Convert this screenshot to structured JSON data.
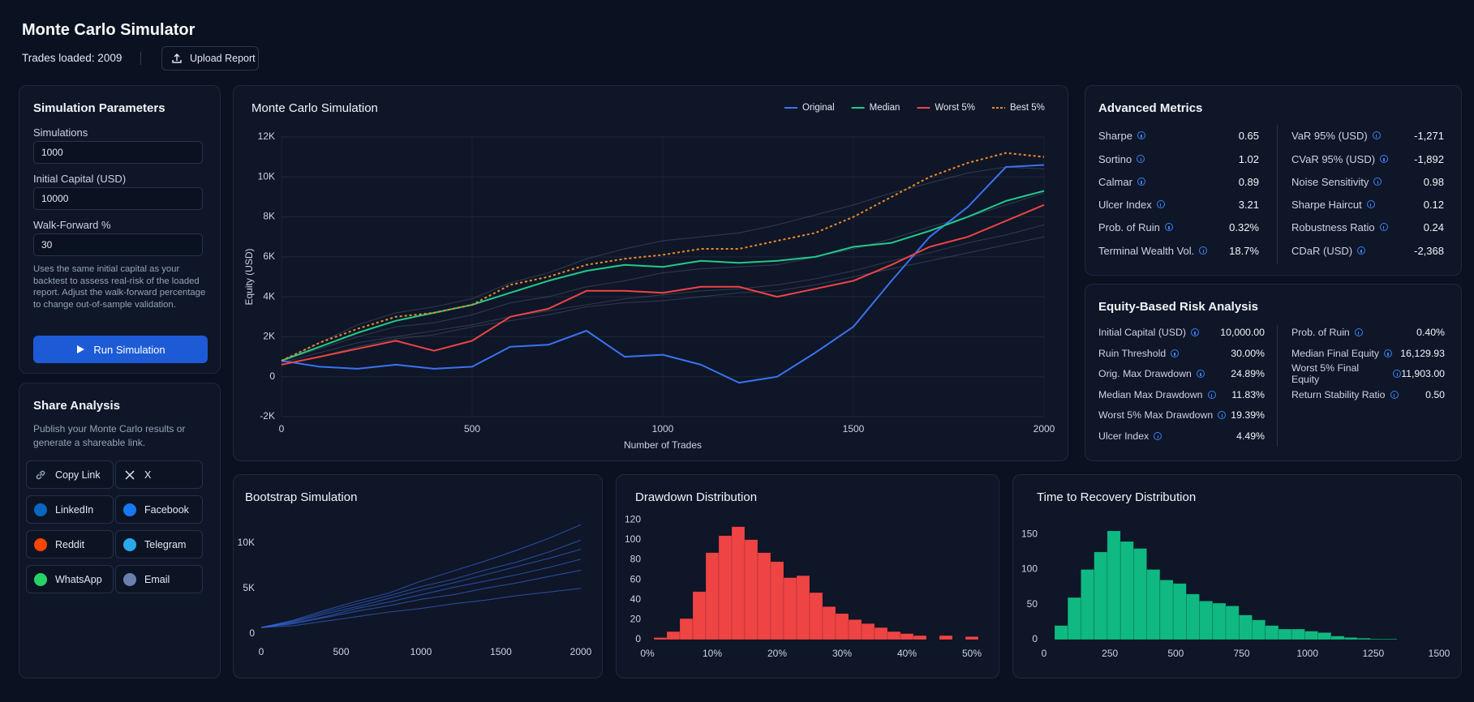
{
  "header": {
    "title": "Monte Carlo Simulator",
    "trades_loaded": "Trades loaded: 2009",
    "upload_button": "Upload Report"
  },
  "parameters": {
    "title": "Simulation Parameters",
    "fields": [
      {
        "label": "Simulations",
        "value": "1000"
      },
      {
        "label": "Initial Capital (USD)",
        "value": "10000"
      },
      {
        "label": "Walk-Forward %",
        "value": "30"
      }
    ],
    "description": "Uses the same initial capital as your backtest to assess real-risk of the loaded report. Adjust the walk-forward percentage to change out-of-sample validation.",
    "run_button": "Run Simulation"
  },
  "share": {
    "title": "Share Analysis",
    "description": "Publish your Monte Carlo results or generate a shareable link.",
    "buttons": [
      "Copy Link",
      "X",
      "LinkedIn",
      "Facebook",
      "Reddit",
      "Telegram",
      "WhatsApp",
      "Email"
    ]
  },
  "advanced_metrics": {
    "title": "Advanced Metrics",
    "left": [
      {
        "label": "Sharpe",
        "value": "0.65"
      },
      {
        "label": "Sortino",
        "value": "1.02"
      },
      {
        "label": "Calmar",
        "value": "0.89"
      },
      {
        "label": "Ulcer Index",
        "value": "3.21"
      },
      {
        "label": "Prob. of Ruin",
        "value": "0.32%"
      },
      {
        "label": "Terminal Wealth Vol.",
        "value": "18.7%"
      }
    ],
    "right": [
      {
        "label": "VaR 95% (USD)",
        "value": "-1,271"
      },
      {
        "label": "CVaR 95% (USD)",
        "value": "-1,892"
      },
      {
        "label": "Noise Sensitivity",
        "value": "0.98"
      },
      {
        "label": "Sharpe Haircut",
        "value": "0.12"
      },
      {
        "label": "Robustness Ratio",
        "value": "0.24"
      },
      {
        "label": "CDaR (USD)",
        "value": "-2,368"
      }
    ]
  },
  "risk_analysis": {
    "title": "Equity-Based Risk Analysis",
    "left": [
      {
        "label": "Initial Capital (USD)",
        "value": "10,000.00"
      },
      {
        "label": "Ruin Threshold",
        "value": "30.00%"
      },
      {
        "label": "Orig. Max Drawdown",
        "value": "24.89%"
      },
      {
        "label": "Median Max Drawdown",
        "value": "11.83%"
      },
      {
        "label": "Worst 5% Max Drawdown",
        "value": "19.39%"
      },
      {
        "label": "Ulcer Index",
        "value": "4.49%"
      }
    ],
    "right": [
      {
        "label": "Prob. of Ruin",
        "value": "0.40%"
      },
      {
        "label": "Median Final Equity",
        "value": "16,129.93"
      },
      {
        "label": "Worst 5% Final Equity",
        "value": "11,903.00"
      },
      {
        "label": "Return Stability Ratio",
        "value": "0.50"
      }
    ]
  },
  "chart_data": [
    {
      "type": "line",
      "title": "Monte Carlo Simulation",
      "x_label": "Number of Trades",
      "y_label": "Equity (USD)",
      "x": [
        0,
        100,
        200,
        300,
        400,
        500,
        600,
        700,
        800,
        900,
        1000,
        1100,
        1200,
        1300,
        1400,
        1500,
        1600,
        1700,
        1800,
        1900,
        2000
      ],
      "xlim": [
        0,
        2000
      ],
      "xticks": [
        0,
        500,
        1000,
        1500,
        2000
      ],
      "ylim": [
        -2000,
        12000
      ],
      "yticks": [
        {
          "value": -2000,
          "label": "-2K"
        },
        0,
        {
          "value": 2000,
          "label": "2K"
        },
        {
          "value": 4000,
          "label": "4K"
        },
        {
          "value": 6000,
          "label": "6K"
        },
        {
          "value": 8000,
          "label": "8K"
        },
        {
          "value": 10000,
          "label": "10K"
        },
        {
          "value": 12000,
          "label": "12K"
        }
      ],
      "grid": true,
      "legend": "top-right",
      "series": [
        {
          "color": "rgba(148,163,184,0.25)",
          "values": [
            800,
            1400,
            2000,
            2500,
            2700,
            3100,
            3700,
            4000,
            4500,
            4800,
            5200,
            5400,
            5500,
            5600,
            6000,
            6400,
            6900,
            7500,
            8000,
            8600,
            9200
          ]
        },
        {
          "color": "rgba(148,163,184,0.25)",
          "values": [
            700,
            1200,
            1700,
            2000,
            2300,
            2600,
            3000,
            3300,
            3600,
            3900,
            4100,
            4300,
            4400,
            4600,
            4900,
            5300,
            5800,
            6200,
            6700,
            7100,
            7600
          ]
        },
        {
          "color": "rgba(148,163,184,0.25)",
          "values": [
            800,
            1700,
            2600,
            3200,
            3500,
            3900,
            4700,
            5200,
            5900,
            6400,
            6800,
            7000,
            7200,
            7600,
            8100,
            8600,
            9200,
            9700,
            10200,
            10500,
            10400
          ]
        },
        {
          "color": "rgba(148,163,184,0.25)",
          "values": [
            600,
            1000,
            1500,
            1900,
            2100,
            2500,
            2800,
            3100,
            3500,
            3700,
            3800,
            4000,
            4200,
            4300,
            4600,
            5000,
            5400,
            5800,
            6200,
            6600,
            7000
          ]
        },
        {
          "name": "Original",
          "color": "#3b72f0",
          "values": [
            800,
            500,
            400,
            600,
            400,
            500,
            1500,
            1600,
            2300,
            1000,
            1100,
            600,
            -300,
            0,
            1200,
            2500,
            4800,
            7000,
            8500,
            10500,
            10600
          ]
        },
        {
          "name": "Median",
          "color": "#22c98a",
          "values": [
            800,
            1500,
            2200,
            2800,
            3200,
            3600,
            4200,
            4800,
            5300,
            5600,
            5500,
            5800,
            5700,
            5800,
            6000,
            6500,
            6700,
            7300,
            8000,
            8800,
            9300
          ]
        },
        {
          "name": "Worst 5%",
          "color": "#ef4444",
          "values": [
            600,
            1000,
            1400,
            1800,
            1300,
            1800,
            3000,
            3400,
            4300,
            4300,
            4200,
            4500,
            4500,
            4000,
            4400,
            4800,
            5600,
            6500,
            7000,
            7800,
            8600
          ]
        },
        {
          "name": "Best 5%",
          "color": "#f08a24",
          "style": "dashed",
          "values": [
            800,
            1700,
            2400,
            3000,
            3200,
            3600,
            4600,
            5000,
            5600,
            5900,
            6100,
            6400,
            6400,
            6800,
            7200,
            8000,
            9000,
            10000,
            10700,
            11200,
            11000
          ]
        }
      ]
    },
    {
      "type": "line",
      "title": "Bootstrap Simulation",
      "x": [
        0,
        200,
        400,
        600,
        800,
        1000,
        1200,
        1400,
        1600,
        1800,
        2000
      ],
      "xlim": [
        0,
        2000
      ],
      "xticks": [
        0,
        500,
        1000,
        1500,
        2000
      ],
      "ylim": [
        0,
        13000
      ],
      "yticks": [
        0,
        {
          "value": 5000,
          "label": "5K"
        },
        {
          "value": 10000,
          "label": "10K"
        }
      ],
      "grid": false,
      "series": [
        {
          "color": "rgba(59,110,230,0.6)",
          "values": [
            700,
            1500,
            2600,
            3600,
            4500,
            5800,
            6900,
            8000,
            9200,
            10500,
            12000
          ]
        },
        {
          "color": "rgba(59,110,230,0.6)",
          "values": [
            700,
            1300,
            2200,
            3000,
            3900,
            4800,
            5600,
            6500,
            7400,
            8300,
            9300
          ]
        },
        {
          "color": "rgba(59,110,230,0.6)",
          "values": [
            700,
            1100,
            1800,
            2500,
            3100,
            3800,
            4300,
            5000,
            5600,
            6300,
            7000
          ]
        },
        {
          "color": "rgba(59,110,230,0.6)",
          "values": [
            700,
            900,
            1400,
            1900,
            2400,
            2800,
            3300,
            3700,
            4200,
            4600,
            5000
          ]
        },
        {
          "color": "rgba(59,110,230,0.6)",
          "values": [
            700,
            1400,
            2400,
            3300,
            4200,
            5200,
            6000,
            7000,
            7900,
            9000,
            10300
          ]
        },
        {
          "color": "rgba(59,110,230,0.6)",
          "values": [
            700,
            1200,
            1900,
            2800,
            3500,
            4300,
            5100,
            5800,
            6500,
            7300,
            8200
          ]
        }
      ]
    },
    {
      "type": "histogram",
      "title": "Drawdown Distribution",
      "color": "#ef4444",
      "bins": [
        1,
        3,
        5,
        7,
        9,
        11,
        13,
        15,
        17,
        19,
        21,
        23,
        25,
        27,
        29,
        31,
        33,
        35,
        37,
        39,
        41,
        43,
        45,
        47,
        49,
        51
      ],
      "values": [
        2,
        8,
        21,
        48,
        87,
        104,
        113,
        100,
        87,
        78,
        62,
        64,
        47,
        33,
        26,
        20,
        16,
        12,
        8,
        6,
        4,
        0,
        4,
        0,
        3
      ],
      "xlim": [
        0,
        51
      ],
      "xticks": [
        {
          "value": 0,
          "label": "0%"
        },
        {
          "value": 10,
          "label": "10%"
        },
        {
          "value": 20,
          "label": "20%"
        },
        {
          "value": 30,
          "label": "30%"
        },
        {
          "value": 40,
          "label": "40%"
        },
        {
          "value": 50,
          "label": "50%"
        }
      ],
      "ylim": [
        0,
        125
      ],
      "yticks": [
        0,
        20,
        40,
        60,
        80,
        100,
        120
      ]
    },
    {
      "type": "histogram",
      "title": "Time to Recovery Distribution",
      "color": "#10b981",
      "bins": [
        40,
        90,
        140,
        190,
        240,
        290,
        340,
        390,
        440,
        490,
        540,
        590,
        640,
        690,
        740,
        790,
        840,
        890,
        940,
        990,
        1040,
        1090,
        1140,
        1190,
        1240,
        1290,
        1340
      ],
      "values": [
        20,
        60,
        100,
        125,
        155,
        140,
        130,
        100,
        85,
        80,
        65,
        55,
        52,
        48,
        35,
        28,
        20,
        15,
        15,
        12,
        10,
        5,
        3,
        2,
        1,
        1
      ],
      "xlim": [
        0,
        1500
      ],
      "xticks": [
        0,
        250,
        500,
        750,
        1000,
        1250,
        1500
      ],
      "ylim": [
        0,
        170
      ],
      "yticks": [
        0,
        50,
        100,
        150
      ]
    }
  ]
}
